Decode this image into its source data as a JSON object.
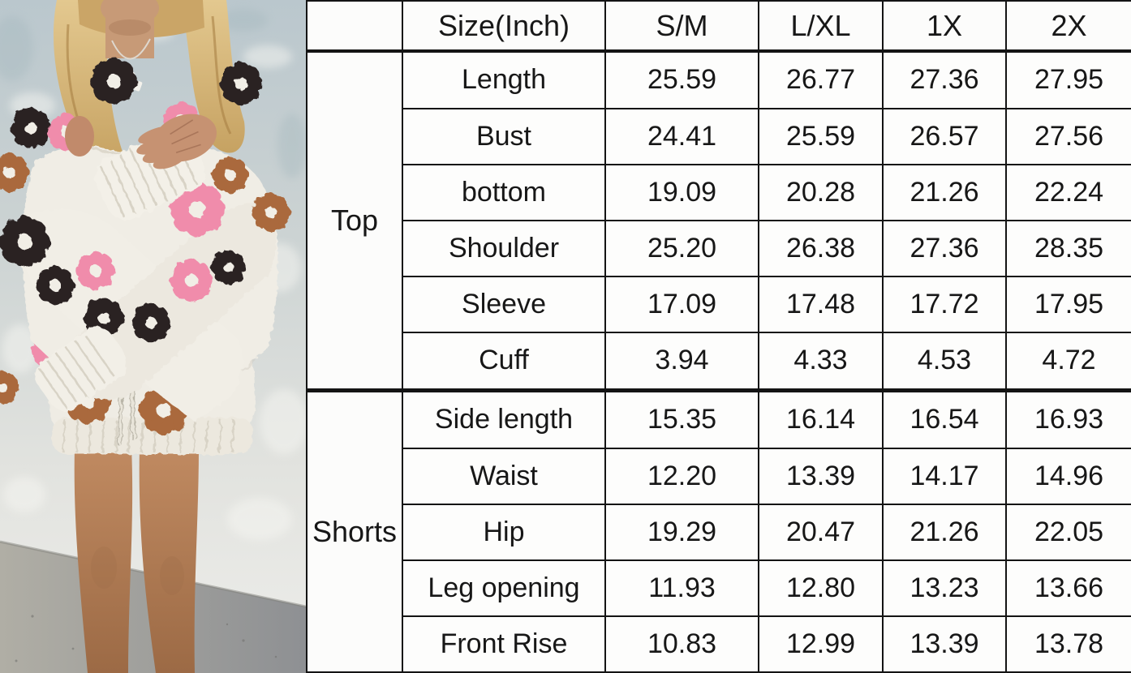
{
  "photo": {
    "alt": "model-in-flower-knit-set",
    "colors": {
      "wall_top": "#bac7cd",
      "wall_bottom": "#ededea",
      "floor": "#8e9093",
      "hair": "#d3ab71",
      "skin": "#c08a64",
      "knit_cream": "#f0ede5",
      "flower_black": "#2a2223",
      "flower_pink": "#f08cab",
      "flower_brown": "#aa693c"
    }
  },
  "table": {
    "unit_header": "Size(Inch)",
    "size_headers": [
      "S/M",
      "L/XL",
      "1X",
      "2X"
    ],
    "border_color": "#141414",
    "sections": [
      {
        "group": "Top",
        "rows": [
          {
            "label": "Length",
            "values": [
              "25.59",
              "26.77",
              "27.36",
              "27.95"
            ]
          },
          {
            "label": "Bust",
            "values": [
              "24.41",
              "25.59",
              "26.57",
              "27.56"
            ]
          },
          {
            "label": "bottom",
            "values": [
              "19.09",
              "20.28",
              "21.26",
              "22.24"
            ]
          },
          {
            "label": "Shoulder",
            "values": [
              "25.20",
              "26.38",
              "27.36",
              "28.35"
            ]
          },
          {
            "label": "Sleeve",
            "values": [
              "17.09",
              "17.48",
              "17.72",
              "17.95"
            ]
          },
          {
            "label": "Cuff",
            "values": [
              "3.94",
              "4.33",
              "4.53",
              "4.72"
            ]
          }
        ]
      },
      {
        "group": "Shorts",
        "rows": [
          {
            "label": "Side length",
            "values": [
              "15.35",
              "16.14",
              "16.54",
              "16.93"
            ]
          },
          {
            "label": "Waist",
            "values": [
              "12.20",
              "13.39",
              "14.17",
              "14.96"
            ]
          },
          {
            "label": "Hip",
            "values": [
              "19.29",
              "20.47",
              "21.26",
              "22.05"
            ]
          },
          {
            "label": "Leg opening",
            "values": [
              "11.93",
              "12.80",
              "13.23",
              "13.66"
            ]
          },
          {
            "label": "Front Rise",
            "values": [
              "10.83",
              "12.99",
              "13.39",
              "13.78"
            ]
          }
        ]
      }
    ]
  }
}
